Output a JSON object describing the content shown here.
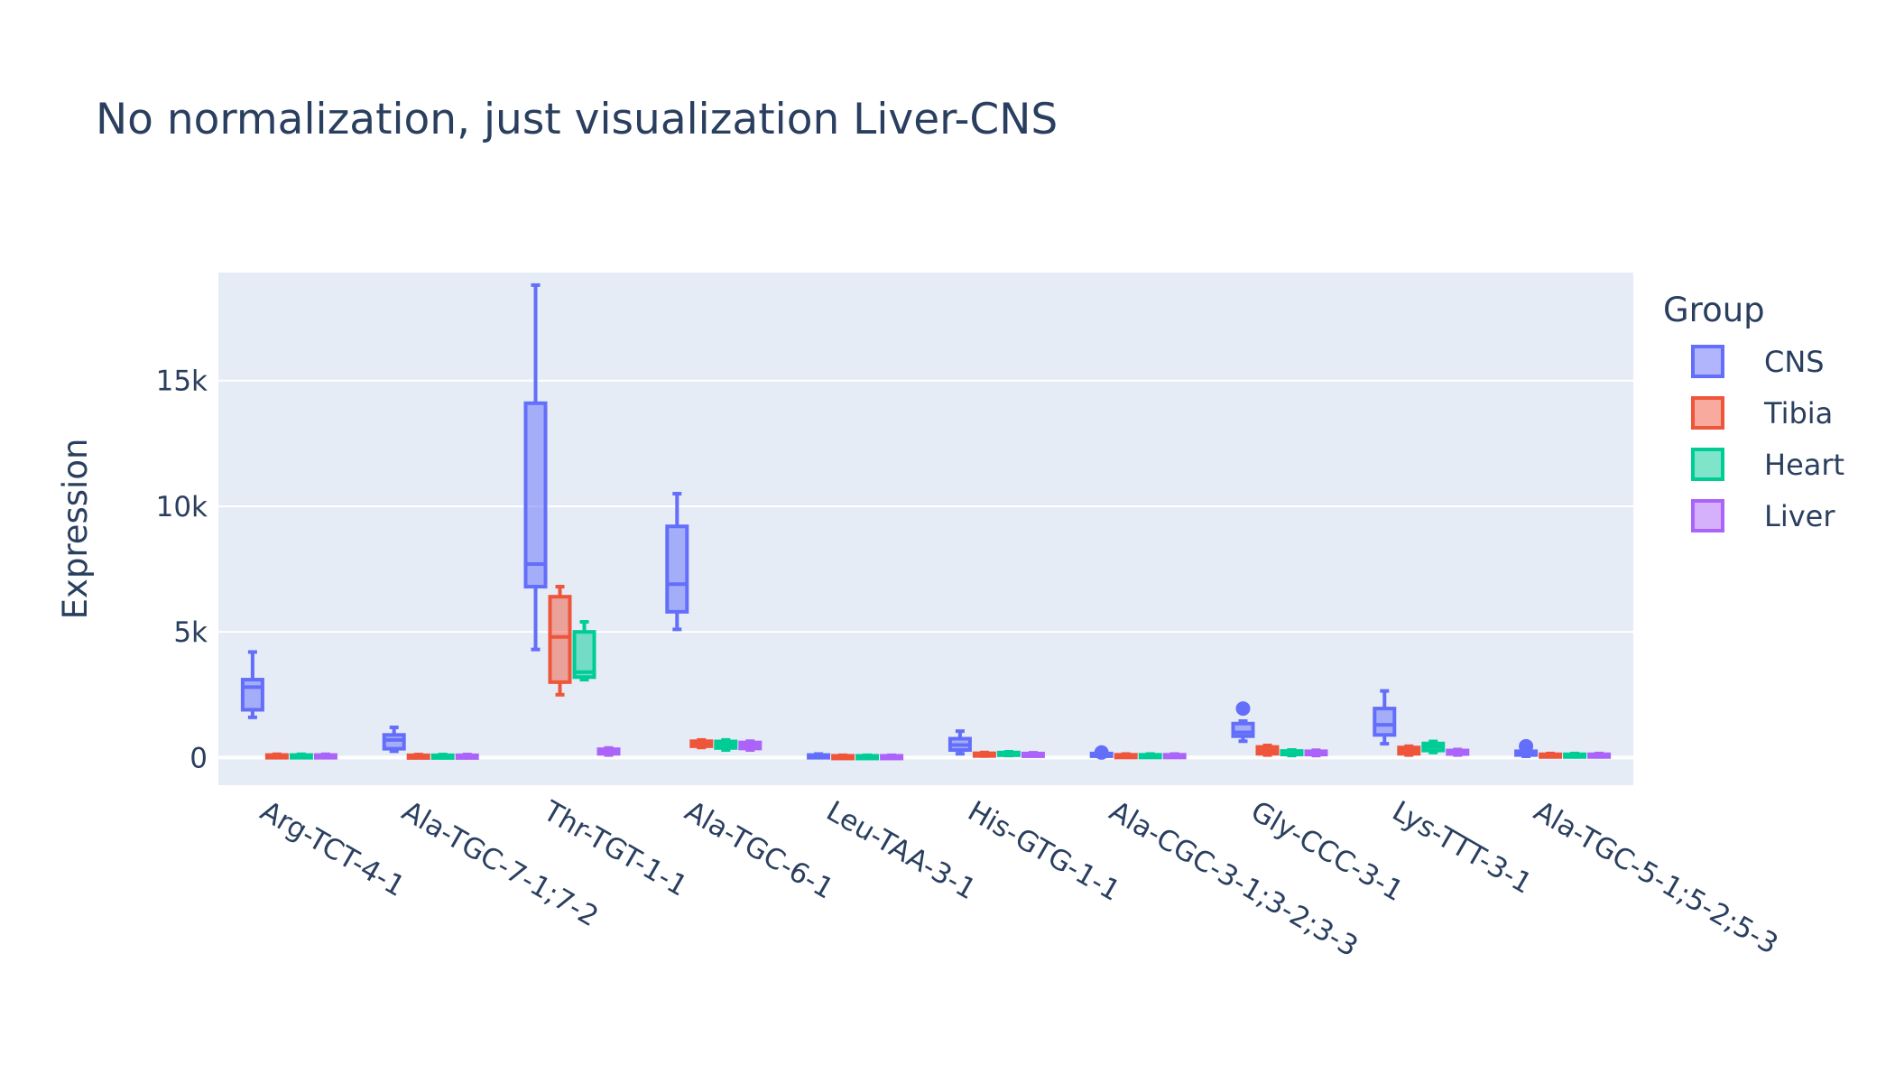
{
  "chart_data": {
    "type": "box",
    "title": "No normalization, just visualization Liver-CNS",
    "xlabel": "",
    "ylabel": "Expression",
    "ylim": [
      -1100,
      19300
    ],
    "yticks": [
      {
        "value": 0,
        "label": "0"
      },
      {
        "value": 5000,
        "label": "5k"
      },
      {
        "value": 10000,
        "label": "10k"
      },
      {
        "value": 15000,
        "label": "15k"
      }
    ],
    "grid": true,
    "legend": {
      "title": "Group",
      "position": "right"
    },
    "categories": [
      "Arg-TCT-4-1",
      "Ala-TGC-7-1;7-2",
      "Thr-TGT-1-1",
      "Ala-TGC-6-1",
      "Leu-TAA-3-1",
      "His-GTG-1-1",
      "Ala-CGC-3-1;3-2;3-3",
      "Gly-CCC-3-1",
      "Lys-TTT-3-1",
      "Ala-TGC-5-1;5-2;5-3"
    ],
    "series": [
      {
        "name": "CNS",
        "color": "#636efa",
        "fill": "rgba(99,110,250,0.5)",
        "boxes": [
          {
            "min": 1600,
            "q1": 1900,
            "median": 2800,
            "q3": 3100,
            "max": 4200
          },
          {
            "min": 250,
            "q1": 350,
            "median": 700,
            "q3": 900,
            "max": 1200
          },
          {
            "min": 4300,
            "q1": 6800,
            "median": 7700,
            "q3": 14100,
            "max": 18800
          },
          {
            "min": 5100,
            "q1": 5800,
            "median": 6900,
            "q3": 9200,
            "max": 10500
          },
          {
            "min": 20,
            "q1": 40,
            "median": 60,
            "q3": 100,
            "max": 140
          },
          {
            "min": 150,
            "q1": 300,
            "median": 500,
            "q3": 750,
            "max": 1050
          },
          {
            "min": 30,
            "q1": 60,
            "median": 110,
            "q3": 160,
            "max": 200,
            "outliers": [
              200
            ]
          },
          {
            "min": 650,
            "q1": 850,
            "median": 1000,
            "q3": 1350,
            "max": 1450,
            "outliers": [
              1950
            ]
          },
          {
            "min": 550,
            "q1": 900,
            "median": 1300,
            "q3": 1950,
            "max": 2650
          },
          {
            "min": 50,
            "q1": 100,
            "median": 150,
            "q3": 250,
            "max": 300,
            "outliers": [
              450
            ]
          }
        ]
      },
      {
        "name": "Tibia",
        "color": "#ef553b",
        "fill": "rgba(239,85,59,0.5)",
        "boxes": [
          {
            "min": 20,
            "q1": 40,
            "median": 70,
            "q3": 100,
            "max": 130
          },
          {
            "min": 15,
            "q1": 30,
            "median": 60,
            "q3": 90,
            "max": 120
          },
          {
            "min": 2500,
            "q1": 3000,
            "median": 4800,
            "q3": 6400,
            "max": 6800
          },
          {
            "min": 400,
            "q1": 450,
            "median": 550,
            "q3": 650,
            "max": 700
          },
          {
            "min": 10,
            "q1": 20,
            "median": 40,
            "q3": 70,
            "max": 90
          },
          {
            "min": 60,
            "q1": 80,
            "median": 130,
            "q3": 170,
            "max": 200
          },
          {
            "min": 20,
            "q1": 40,
            "median": 80,
            "q3": 110,
            "max": 140
          },
          {
            "min": 100,
            "q1": 150,
            "median": 280,
            "q3": 420,
            "max": 480
          },
          {
            "min": 100,
            "q1": 150,
            "median": 280,
            "q3": 400,
            "max": 450
          },
          {
            "min": 30,
            "q1": 50,
            "median": 90,
            "q3": 130,
            "max": 160
          }
        ]
      },
      {
        "name": "Heart",
        "color": "#00cc96",
        "fill": "rgba(0,204,150,0.5)",
        "boxes": [
          {
            "min": 20,
            "q1": 40,
            "median": 70,
            "q3": 100,
            "max": 130
          },
          {
            "min": 15,
            "q1": 30,
            "median": 60,
            "q3": 90,
            "max": 120
          },
          {
            "min": 3100,
            "q1": 3200,
            "median": 3400,
            "q3": 5000,
            "max": 5400
          },
          {
            "min": 300,
            "q1": 380,
            "median": 500,
            "q3": 640,
            "max": 700
          },
          {
            "min": 10,
            "q1": 20,
            "median": 40,
            "q3": 70,
            "max": 90
          },
          {
            "min": 80,
            "q1": 110,
            "median": 150,
            "q3": 200,
            "max": 230
          },
          {
            "min": 20,
            "q1": 40,
            "median": 80,
            "q3": 110,
            "max": 140
          },
          {
            "min": 80,
            "q1": 120,
            "median": 180,
            "q3": 260,
            "max": 300
          },
          {
            "min": 200,
            "q1": 280,
            "median": 430,
            "q3": 560,
            "max": 640
          },
          {
            "min": 30,
            "q1": 50,
            "median": 90,
            "q3": 130,
            "max": 160
          }
        ]
      },
      {
        "name": "Liver",
        "color": "#ab63fa",
        "fill": "rgba(171,99,250,0.5)",
        "boxes": [
          {
            "min": 20,
            "q1": 40,
            "median": 70,
            "q3": 100,
            "max": 130
          },
          {
            "min": 15,
            "q1": 30,
            "median": 60,
            "q3": 90,
            "max": 120
          },
          {
            "min": 100,
            "q1": 150,
            "median": 250,
            "q3": 330,
            "max": 380
          },
          {
            "min": 300,
            "q1": 360,
            "median": 480,
            "q3": 600,
            "max": 650
          },
          {
            "min": 10,
            "q1": 20,
            "median": 40,
            "q3": 70,
            "max": 90
          },
          {
            "min": 60,
            "q1": 80,
            "median": 120,
            "q3": 160,
            "max": 190
          },
          {
            "min": 20,
            "q1": 40,
            "median": 80,
            "q3": 110,
            "max": 140
          },
          {
            "min": 80,
            "q1": 120,
            "median": 180,
            "q3": 250,
            "max": 290
          },
          {
            "min": 100,
            "q1": 140,
            "median": 200,
            "q3": 280,
            "max": 320
          },
          {
            "min": 30,
            "q1": 50,
            "median": 90,
            "q3": 130,
            "max": 160
          }
        ]
      }
    ]
  }
}
